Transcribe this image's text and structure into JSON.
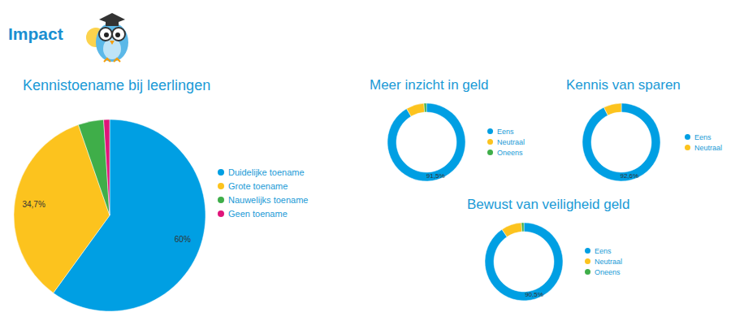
{
  "title": "Impact",
  "chart_data": [
    {
      "type": "pie",
      "title": "Kennistoename bij leerlingen",
      "categories": [
        "Duidelijke toename",
        "Grote toename",
        "Nauwelijks toename",
        "Geen toename"
      ],
      "values": [
        60,
        34.7,
        4.3,
        1.0
      ],
      "colors": [
        "#009fe3",
        "#fcc31e",
        "#3fae49",
        "#e0157a"
      ],
      "data_labels": true,
      "value_labels": [
        "60%",
        "34,7%",
        null,
        null
      ],
      "legend": "right"
    },
    {
      "type": "donut",
      "title": "Meer inzicht in geld",
      "categories": [
        "Eens",
        "Neutraal",
        "Oneens"
      ],
      "values": [
        91.5,
        7.5,
        1.0
      ],
      "colors": [
        "#009fe3",
        "#fcc31e",
        "#3fae49"
      ],
      "data_labels": true,
      "value_labels": [
        "91,5%",
        null,
        null
      ],
      "legend": "right"
    },
    {
      "type": "donut",
      "title": "Kennis van sparen",
      "categories": [
        "Eens",
        "Neutraal"
      ],
      "values": [
        92.6,
        7.4
      ],
      "colors": [
        "#009fe3",
        "#fcc31e"
      ],
      "data_labels": true,
      "value_labels": [
        "92,6%",
        null
      ],
      "legend": "right"
    },
    {
      "type": "donut",
      "title": "Bewust van veiligheid geld",
      "categories": [
        "Eens",
        "Neutraal",
        "Oneens"
      ],
      "values": [
        90.5,
        8.5,
        1.0
      ],
      "colors": [
        "#009fe3",
        "#fcc31e",
        "#3fae49"
      ],
      "data_labels": true,
      "value_labels": [
        "90,5%",
        null,
        null
      ],
      "legend": "right"
    }
  ]
}
